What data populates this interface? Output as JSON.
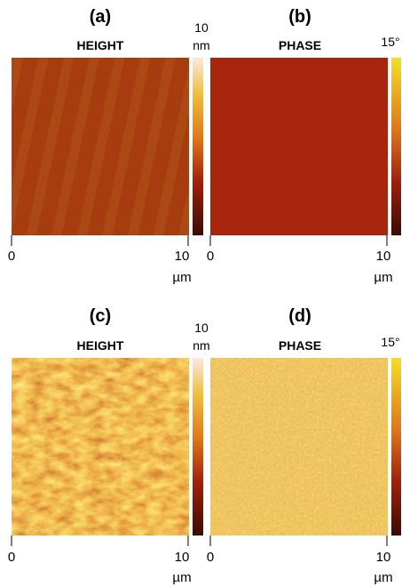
{
  "panels": [
    {
      "label": "(a)",
      "title": "HEIGHT",
      "scale_max": "10",
      "scale_unit": "nm",
      "x_min": "0",
      "x_max": "10",
      "x_unit": "µm"
    },
    {
      "label": "(b)",
      "title": "PHASE",
      "scale_max": "15°",
      "x_min": "0",
      "x_max": "10",
      "x_unit": "µm"
    },
    {
      "label": "(c)",
      "title": "HEIGHT",
      "scale_max": "10",
      "scale_unit": "nm",
      "x_min": "0",
      "x_max": "10",
      "x_unit": "µm"
    },
    {
      "label": "(d)",
      "title": "PHASE",
      "scale_max": "15°",
      "x_min": "0",
      "x_max": "10",
      "x_unit": "µm"
    }
  ]
}
